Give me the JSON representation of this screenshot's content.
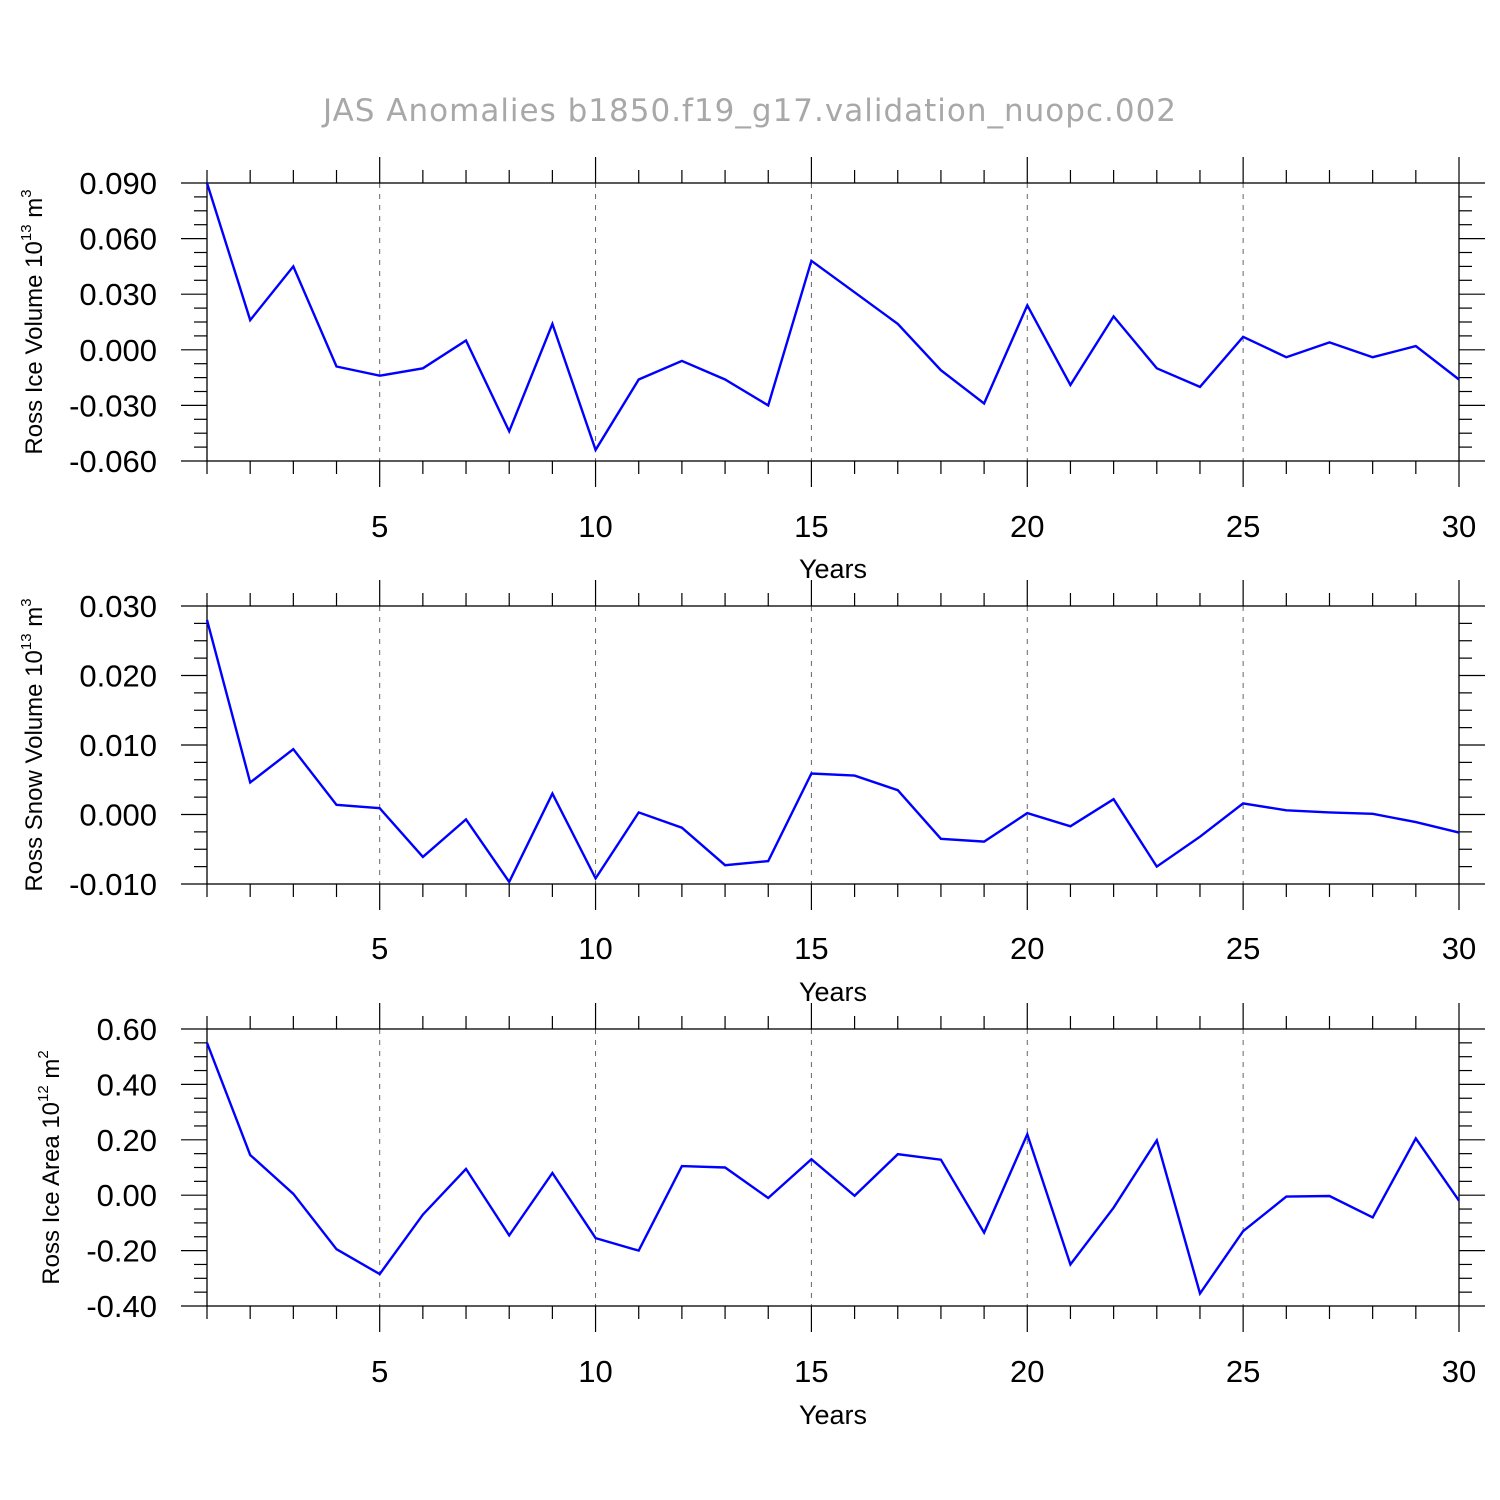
{
  "title": "JAS Anomalies b1850.f19_g17.validation_nuopc.002",
  "colors": {
    "series": "#0000ff",
    "title": "#a8a8a8",
    "grid": "#666666"
  },
  "chart_data": [
    {
      "type": "line",
      "xlabel": "Years",
      "ylabel": {
        "prefix": "Ross Ice Volume 10",
        "exponent": "13",
        "unit": " m",
        "unit_exponent": "3"
      },
      "xlim": [
        1,
        30
      ],
      "ylim": [
        -0.06,
        0.09
      ],
      "xticks": [
        "5",
        "10",
        "15",
        "20",
        "25",
        "30"
      ],
      "yticks": [
        "0.090",
        "0.060",
        "0.030",
        "0.000",
        "-0.030",
        "-0.060"
      ],
      "x": [
        1,
        2,
        3,
        4,
        5,
        6,
        7,
        8,
        9,
        10,
        11,
        12,
        13,
        14,
        15,
        16,
        17,
        18,
        19,
        20,
        21,
        22,
        23,
        24,
        25,
        26,
        27,
        28,
        29,
        30
      ],
      "values": [
        0.09,
        0.016,
        0.045,
        -0.009,
        -0.014,
        -0.01,
        0.005,
        -0.044,
        0.014,
        -0.054,
        -0.016,
        -0.006,
        -0.016,
        -0.03,
        0.048,
        0.031,
        0.014,
        -0.011,
        -0.029,
        0.024,
        -0.019,
        0.018,
        -0.01,
        -0.02,
        0.007,
        -0.004,
        0.004,
        -0.004,
        0.002,
        -0.016
      ]
    },
    {
      "type": "line",
      "xlabel": "Years",
      "ylabel": {
        "prefix": "Ross Snow Volume 10",
        "exponent": "13",
        "unit": " m",
        "unit_exponent": "3"
      },
      "xlim": [
        1,
        30
      ],
      "ylim": [
        -0.01,
        0.03
      ],
      "xticks": [
        "5",
        "10",
        "15",
        "20",
        "25",
        "30"
      ],
      "yticks": [
        "0.030",
        "0.020",
        "0.010",
        "0.000",
        "-0.010"
      ],
      "x": [
        1,
        2,
        3,
        4,
        5,
        6,
        7,
        8,
        9,
        10,
        11,
        12,
        13,
        14,
        15,
        16,
        17,
        18,
        19,
        20,
        21,
        22,
        23,
        24,
        25,
        26,
        27,
        28,
        29,
        30
      ],
      "values": [
        0.028,
        0.0046,
        0.0094,
        0.0014,
        0.0009,
        -0.0061,
        -0.0007,
        -0.0097,
        0.003,
        -0.0092,
        0.0003,
        -0.0019,
        -0.0073,
        -0.0067,
        0.0059,
        0.0056,
        0.0035,
        -0.0035,
        -0.0039,
        0.0002,
        -0.0017,
        0.0022,
        -0.0075,
        -0.0032,
        0.0016,
        0.0006,
        0.0003,
        0.0001,
        -0.0011,
        -0.0026
      ]
    },
    {
      "type": "line",
      "xlabel": "Years",
      "ylabel": {
        "prefix": "Ross Ice Area 10",
        "exponent": "12",
        "unit": " m",
        "unit_exponent": "2"
      },
      "xlim": [
        1,
        30
      ],
      "ylim": [
        -0.4,
        0.6
      ],
      "xticks": [
        "5",
        "10",
        "15",
        "20",
        "25",
        "30"
      ],
      "yticks": [
        "0.60",
        "0.40",
        "0.20",
        "0.00",
        "-0.20",
        "-0.40"
      ],
      "x": [
        1,
        2,
        3,
        4,
        5,
        6,
        7,
        8,
        9,
        10,
        11,
        12,
        13,
        14,
        15,
        16,
        17,
        18,
        19,
        20,
        21,
        22,
        23,
        24,
        25,
        26,
        27,
        28,
        29,
        30
      ],
      "values": [
        0.55,
        0.145,
        0.005,
        -0.195,
        -0.285,
        -0.07,
        0.095,
        -0.145,
        0.08,
        -0.155,
        -0.2,
        0.105,
        0.1,
        -0.01,
        0.13,
        -0.002,
        0.148,
        0.128,
        -0.135,
        0.22,
        -0.25,
        -0.045,
        0.198,
        -0.355,
        -0.13,
        -0.005,
        -0.003,
        -0.08,
        0.205,
        -0.02
      ]
    }
  ]
}
